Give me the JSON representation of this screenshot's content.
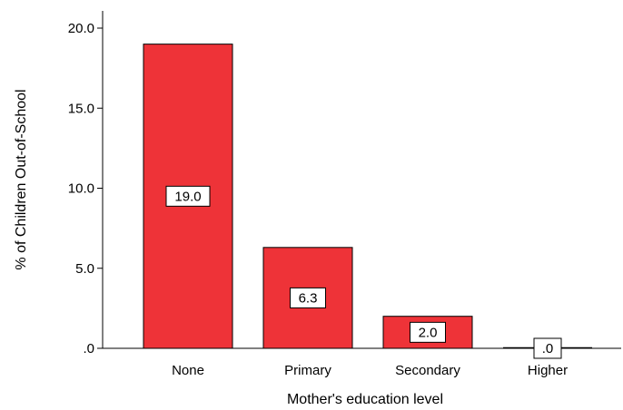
{
  "chart_data": {
    "type": "bar",
    "categories": [
      "None",
      "Primary",
      "Secondary",
      "Higher"
    ],
    "values": [
      19.0,
      6.3,
      2.0,
      0.0
    ],
    "data_labels": [
      "19.0",
      "6.3",
      "2.0",
      ".0"
    ],
    "xlabel": "Mother's education level",
    "ylabel": "% of Children Out-of-School",
    "ylim": [
      0,
      20
    ],
    "yticks": [
      0,
      5,
      10,
      15,
      20
    ],
    "ytick_labels": [
      ".0",
      "5.0",
      "10.0",
      "15.0",
      "20.0"
    ],
    "grid": false,
    "legend": "none",
    "bar_color": "#ee3338",
    "bar_edge_color": "#000000"
  }
}
